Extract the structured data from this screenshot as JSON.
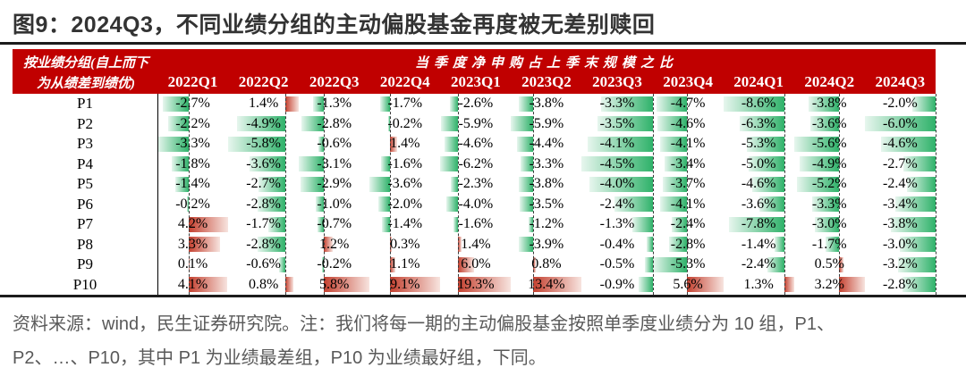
{
  "title": "图9：2024Q3，不同业绩分组的主动偏股基金再度被无差别赎回",
  "header": {
    "group_col_line1": "按业绩分组(自上而下",
    "group_col_line2": "为从绩差到绩优)",
    "span_label": "当季度净申购占上季末规模之比"
  },
  "chart_data": {
    "type": "table",
    "title": "2024Q3，不同业绩分组的主动偏股基金再度被无差别赎回",
    "row_group_label": "按业绩分组(自上而下为从绩差到绩优)",
    "value_label": "当季度净申购占上季末规模之比",
    "unit": "%",
    "categories": [
      "2022Q1",
      "2022Q2",
      "2022Q3",
      "2022Q4",
      "2023Q1",
      "2023Q2",
      "2023Q3",
      "2023Q4",
      "2024Q1",
      "2024Q2",
      "2024Q3"
    ],
    "rows": [
      {
        "name": "P1",
        "values": [
          -2.7,
          1.4,
          -1.3,
          -1.7,
          -2.6,
          -3.8,
          -3.3,
          -4.7,
          -8.6,
          -3.8,
          -2.0
        ]
      },
      {
        "name": "P2",
        "values": [
          -2.2,
          -4.9,
          -2.8,
          -0.2,
          -5.9,
          -5.9,
          -3.5,
          -4.6,
          -6.3,
          -3.6,
          -6.0
        ]
      },
      {
        "name": "P3",
        "values": [
          -3.3,
          -5.8,
          -0.6,
          1.4,
          -4.6,
          -4.4,
          -4.1,
          -4.1,
          -5.3,
          -5.6,
          -4.6
        ]
      },
      {
        "name": "P4",
        "values": [
          -1.8,
          -3.6,
          -3.1,
          -1.6,
          -6.2,
          -3.3,
          -4.5,
          -3.4,
          -5.0,
          -4.9,
          -2.7
        ]
      },
      {
        "name": "P5",
        "values": [
          -1.4,
          -2.7,
          -2.9,
          -3.6,
          -2.3,
          -3.8,
          -4.0,
          -3.7,
          -4.6,
          -5.2,
          -2.4
        ]
      },
      {
        "name": "P6",
        "values": [
          -0.2,
          -2.8,
          -1.0,
          -2.0,
          -4.0,
          -3.5,
          -2.4,
          -4.1,
          -3.6,
          -3.3,
          -3.4
        ]
      },
      {
        "name": "P7",
        "values": [
          4.2,
          -1.7,
          -0.7,
          -1.4,
          -1.6,
          -1.2,
          -1.3,
          -2.4,
          -7.8,
          -3.0,
          -3.8
        ]
      },
      {
        "name": "P8",
        "values": [
          3.3,
          -2.8,
          1.2,
          0.3,
          1.4,
          -3.9,
          -0.4,
          -2.8,
          -1.4,
          -1.7,
          -3.0
        ]
      },
      {
        "name": "P9",
        "values": [
          0.1,
          -0.6,
          -0.2,
          1.1,
          6.0,
          0.8,
          -0.5,
          -5.3,
          -2.4,
          0.5,
          -3.2
        ]
      },
      {
        "name": "P10",
        "values": [
          4.1,
          0.8,
          5.8,
          9.1,
          19.3,
          13.4,
          -0.9,
          5.6,
          1.3,
          3.2,
          -2.8
        ]
      }
    ],
    "bar_style": "excel-gradient-databar, axis per column at zero, negative bars green leftward, positive bars red rightward"
  },
  "source_note": {
    "line1": "资料来源：wind，民生证券研究院。注：我们将每一期的主动偏股基金按照单季度业绩分为 10 组，P1、",
    "line2": "P2、…、P10，其中 P1 为业绩最差组，P10 为业绩最好组，下同。"
  },
  "colors": {
    "header_bg": "#c00000",
    "header_text": "#ffffff",
    "negative_bar": "#2fb26a",
    "negative_bar_fade": "#e7f6ee",
    "positive_bar": "#c4402f",
    "positive_bar_fade": "#f7e4df",
    "title_text": "#333333",
    "note_text": "#595959",
    "rule": "#1c1c1c"
  }
}
